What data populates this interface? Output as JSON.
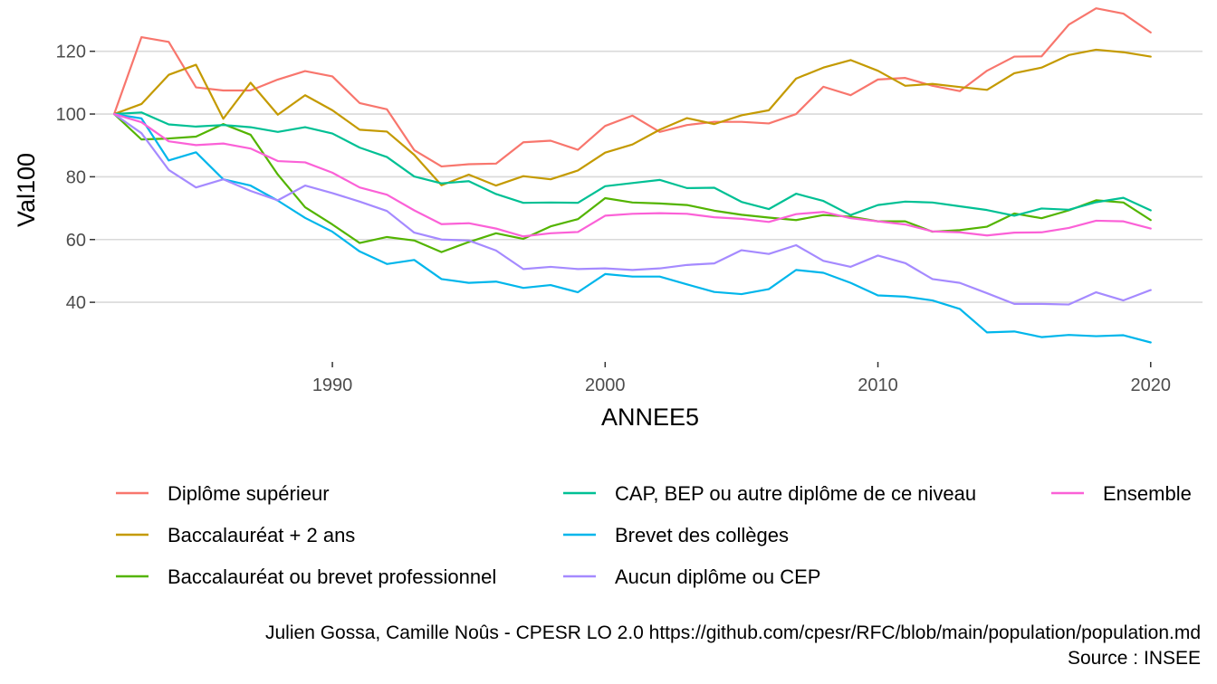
{
  "chart_data": {
    "type": "line",
    "title": "",
    "xlabel": "ANNEE5",
    "ylabel": "Val100",
    "xlim": [
      1981.3,
      2021.9
    ],
    "ylim": [
      21,
      130
    ],
    "x_ticks": [
      1990,
      2000,
      2010,
      2020
    ],
    "y_ticks": [
      40,
      60,
      80,
      100,
      120
    ],
    "grid": "horizontal",
    "legend_position": "bottom",
    "x": [
      1982,
      1983,
      1984,
      1985,
      1986,
      1987,
      1988,
      1989,
      1990,
      1991,
      1992,
      1993,
      1994,
      1995,
      1996,
      1997,
      1998,
      1999,
      2000,
      2001,
      2002,
      2003,
      2004,
      2005,
      2006,
      2007,
      2008,
      2009,
      2010,
      2011,
      2012,
      2013,
      2014,
      2015,
      2016,
      2017,
      2018,
      2019,
      2020
    ],
    "series": [
      {
        "name": "Diplôme supérieur",
        "color": "#F8766D",
        "values": [
          100,
          124.5,
          123,
          108.5,
          107.5,
          107.5,
          111,
          113.7,
          112,
          103.5,
          101.5,
          88.5,
          83.3,
          84,
          84.2,
          91,
          91.5,
          88.6,
          96.2,
          99.5,
          94.3,
          96.5,
          97.5,
          97.5,
          97,
          100,
          108.7,
          106,
          111,
          111.5,
          109,
          107.3,
          113.8,
          118.3,
          118.4,
          128.5,
          133.7,
          132,
          126
        ]
      },
      {
        "name": "Baccalauréat + 2 ans",
        "color": "#C49A00",
        "values": [
          100,
          103.2,
          112.5,
          115.7,
          98.5,
          110,
          99.8,
          106,
          101.2,
          95,
          94.4,
          87,
          77.3,
          80.7,
          77.2,
          80.2,
          79.2,
          82,
          87.7,
          90.3,
          95,
          98.7,
          96.8,
          99.6,
          101.2,
          111.3,
          114.8,
          117.2,
          113.8,
          109,
          109.6,
          108.6,
          107.7,
          113,
          114.8,
          118.8,
          120.5,
          119.7,
          118.3
        ]
      },
      {
        "name": "Baccalauréat ou brevet professionnel",
        "color": "#53B400",
        "values": [
          100,
          91.9,
          92.2,
          92.8,
          96.8,
          93.4,
          80.7,
          70.3,
          64.8,
          58.9,
          60.8,
          59.7,
          56,
          59.2,
          62,
          60.2,
          64.2,
          66.5,
          73.2,
          71.8,
          71.5,
          71,
          69.2,
          67.9,
          67,
          66.2,
          67.8,
          67.3,
          65.8,
          65.8,
          62.5,
          63,
          64.1,
          68.3,
          66.8,
          69.3,
          72.5,
          71.8,
          66.2
        ]
      },
      {
        "name": "CAP, BEP ou autre diplôme de ce niveau",
        "color": "#00C094",
        "values": [
          100,
          100.5,
          96.7,
          96,
          96.5,
          95.8,
          94.3,
          95.8,
          93.8,
          89.3,
          86.3,
          80.1,
          77.9,
          78.6,
          74.5,
          71.7,
          71.8,
          71.7,
          77,
          78,
          79,
          76.4,
          76.5,
          72,
          69.7,
          74.6,
          72.3,
          67.8,
          71,
          72.1,
          71.8,
          70.6,
          69.4,
          67.6,
          69.9,
          69.5,
          71.9,
          73.3,
          69.3
        ]
      },
      {
        "name": "Brevet des collèges",
        "color": "#00B6EB",
        "values": [
          100,
          98.6,
          85.2,
          87.8,
          79.2,
          77.2,
          72.4,
          66.9,
          62.5,
          56.2,
          52.2,
          53.5,
          47.4,
          46.2,
          46.6,
          44.6,
          45.5,
          43.2,
          49,
          48.2,
          48.2,
          45.7,
          43.3,
          42.6,
          44.2,
          50.3,
          49.4,
          46.2,
          42.2,
          41.8,
          40.6,
          37.9,
          30.4,
          30.7,
          28.9,
          29.6,
          29.2,
          29.5,
          27.2
        ]
      },
      {
        "name": "Aucun diplôme ou CEP",
        "color": "#A58AFF",
        "values": [
          100,
          93.9,
          82.2,
          76.6,
          79.2,
          75.5,
          72.5,
          77.2,
          74.8,
          72.1,
          69.1,
          62.2,
          60,
          59.7,
          56.5,
          50.6,
          51.3,
          50.6,
          50.8,
          50.3,
          50.8,
          51.9,
          52.4,
          56.6,
          55.4,
          58.2,
          53.2,
          51.3,
          54.9,
          52.5,
          47.4,
          46.2,
          42.9,
          39.5,
          39.5,
          39.3,
          43.2,
          40.6,
          43.9
        ]
      },
      {
        "name": "Ensemble",
        "color": "#FB61D7",
        "values": [
          100,
          97.4,
          91.3,
          90.1,
          90.6,
          89,
          85,
          84.6,
          81.3,
          76.6,
          74.3,
          69.3,
          64.9,
          65.2,
          63.5,
          61,
          62,
          62.4,
          67.6,
          68.2,
          68.4,
          68.2,
          67.1,
          66.6,
          65.6,
          68.1,
          68.8,
          66.8,
          65.8,
          64.8,
          62.6,
          62.3,
          61.3,
          62.2,
          62.3,
          63.7,
          66,
          65.8,
          63.5
        ]
      }
    ],
    "caption": [
      "Julien Gossa, Camille Noûs - CPESR LO 2.0 https://github.com/cpesr/RFC/blob/main/population/population.md",
      "Source : INSEE"
    ]
  }
}
